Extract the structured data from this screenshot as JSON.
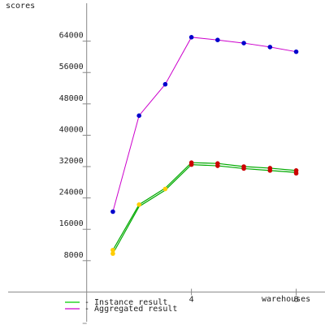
{
  "chart_data": {
    "type": "line",
    "xlabel": "warehouses",
    "ylabel": "scores",
    "xlim": [
      -3,
      9.1
    ],
    "ylim": [
      -8000,
      74500
    ],
    "x_ticks": [
      {
        "value": 4,
        "label": "4"
      },
      {
        "value": 8,
        "label": "8"
      }
    ],
    "y_ticks": [
      {
        "value": 8000,
        "label": "8000"
      },
      {
        "value": 16000,
        "label": "16000"
      },
      {
        "value": 24000,
        "label": "24000"
      },
      {
        "value": 32000,
        "label": "32000"
      },
      {
        "value": 40000,
        "label": "40000"
      },
      {
        "value": 48000,
        "label": "48000"
      },
      {
        "value": 56000,
        "label": "56000"
      },
      {
        "value": 64000,
        "label": "64000"
      }
    ],
    "series": [
      {
        "name": "Instance result",
        "color": "#00aa00",
        "lines": [
          {
            "x": [
              1,
              2,
              3,
              4,
              5,
              6,
              7,
              8
            ],
            "y": [
              9800,
              21800,
              26000,
              32500,
              32200,
              31500,
              31000,
              30500
            ]
          },
          {
            "x": [
              1,
              2,
              3,
              4,
              5,
              6,
              7,
              8
            ],
            "y": [
              10700,
              22300,
              26500,
              33000,
              32800,
              32000,
              31600,
              31000
            ]
          }
        ],
        "markers": [
          {
            "x": 1,
            "y": 9800,
            "color": "#ffcc00"
          },
          {
            "x": 1,
            "y": 10700,
            "color": "#ffcc00"
          },
          {
            "x": 2,
            "y": 22300,
            "color": "#ffcc00"
          },
          {
            "x": 3,
            "y": 26300,
            "color": "#ffcc00"
          },
          {
            "x": 4,
            "y": 32500,
            "color": "#cc0000"
          },
          {
            "x": 4,
            "y": 33000,
            "color": "#cc0000"
          },
          {
            "x": 5,
            "y": 32200,
            "color": "#cc0000"
          },
          {
            "x": 5,
            "y": 32800,
            "color": "#cc0000"
          },
          {
            "x": 6,
            "y": 31500,
            "color": "#cc0000"
          },
          {
            "x": 6,
            "y": 32000,
            "color": "#cc0000"
          },
          {
            "x": 7,
            "y": 31000,
            "color": "#cc0000"
          },
          {
            "x": 7,
            "y": 31600,
            "color": "#cc0000"
          },
          {
            "x": 8,
            "y": 30300,
            "color": "#cc0000"
          },
          {
            "x": 8,
            "y": 31000,
            "color": "#cc0000"
          }
        ]
      },
      {
        "name": "Aggregated result",
        "color": "#cc00cc",
        "marker_color": "#0000cc",
        "x": [
          1,
          2,
          3,
          4,
          5,
          6,
          7,
          8
        ],
        "y": [
          20500,
          45000,
          53000,
          65000,
          64300,
          63500,
          62500,
          61300
        ]
      }
    ],
    "legend": [
      {
        "label": "- Instance result",
        "color": "#00cc00"
      },
      {
        "label": "- Aggregated result",
        "color": "#cc00cc"
      }
    ],
    "legend_position": "bottom-left",
    "grid": false
  }
}
